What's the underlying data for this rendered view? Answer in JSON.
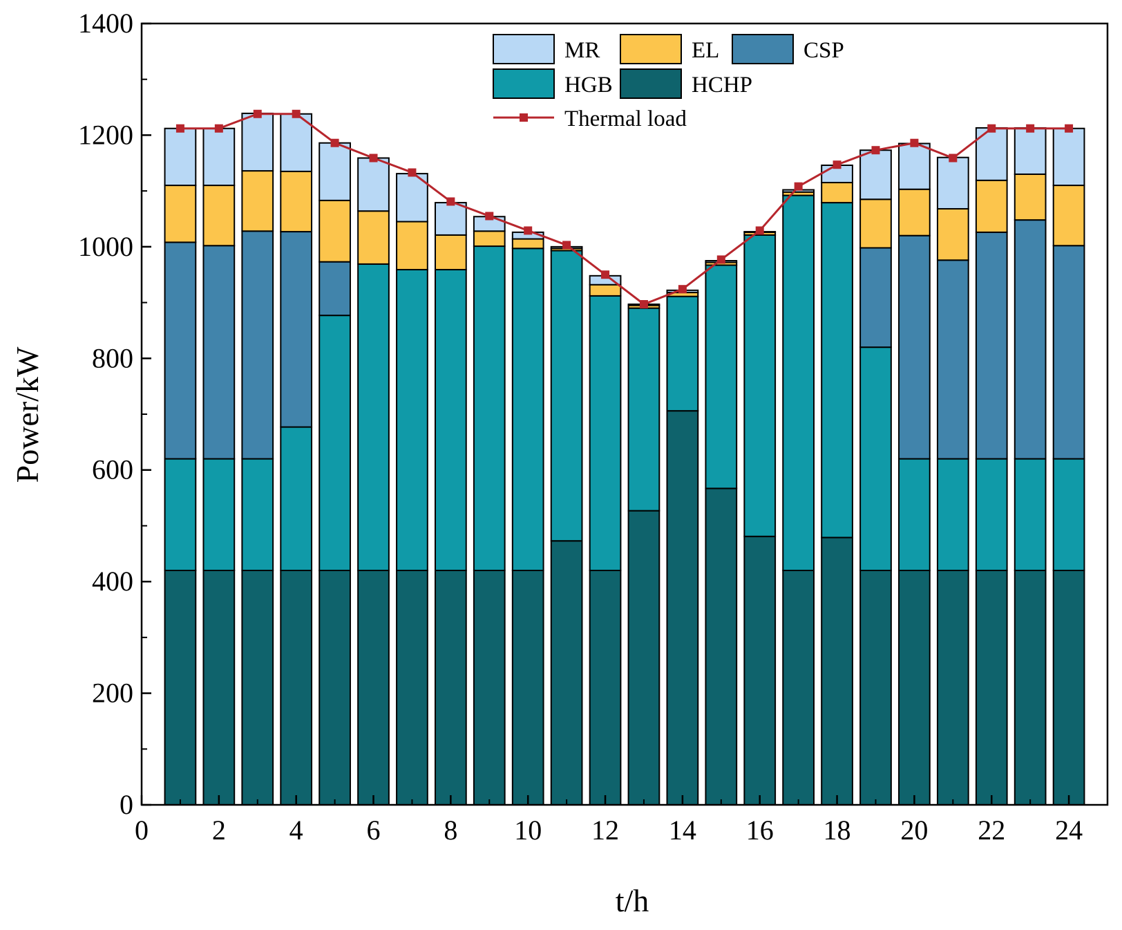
{
  "chart_data": {
    "type": "bar",
    "stacked": true,
    "xlabel": "t/h",
    "ylabel": "Power/kW",
    "xlim": [
      0,
      25
    ],
    "ylim": [
      0,
      1400
    ],
    "xticks": [
      0,
      2,
      4,
      6,
      8,
      10,
      12,
      14,
      16,
      18,
      20,
      22,
      24
    ],
    "yticks": [
      0,
      200,
      400,
      600,
      800,
      1000,
      1200,
      1400
    ],
    "x": [
      1,
      2,
      3,
      4,
      5,
      6,
      7,
      8,
      9,
      10,
      11,
      12,
      13,
      14,
      15,
      16,
      17,
      18,
      19,
      20,
      21,
      22,
      23,
      24
    ],
    "series": [
      {
        "name": "HCHP",
        "color": "#0f636c",
        "values": [
          420,
          420,
          420,
          420,
          420,
          420,
          420,
          420,
          420,
          420,
          473,
          420,
          527,
          706,
          567,
          481,
          420,
          479,
          420,
          420,
          420,
          420,
          420,
          420
        ]
      },
      {
        "name": "HGB",
        "color": "#109aa8",
        "values": [
          200,
          200,
          200,
          257,
          457,
          549,
          539,
          539,
          581,
          577,
          520,
          492,
          363,
          205,
          400,
          540,
          672,
          600,
          400,
          200,
          200,
          200,
          200,
          200
        ]
      },
      {
        "name": "CSP",
        "color": "#4184ab",
        "values": [
          388,
          382,
          408,
          350,
          96,
          0,
          0,
          0,
          0,
          0,
          0,
          0,
          0,
          0,
          0,
          0,
          0,
          0,
          178,
          400,
          356,
          406,
          428,
          382
        ]
      },
      {
        "name": "EL",
        "color": "#fcc54c",
        "values": [
          102,
          108,
          108,
          108,
          110,
          95,
          86,
          62,
          27,
          17,
          4,
          20,
          5,
          7,
          5,
          5,
          6,
          36,
          87,
          83,
          92,
          93,
          82,
          108
        ]
      },
      {
        "name": "MR",
        "color": "#b8d8f5",
        "values": [
          102,
          102,
          103,
          103,
          103,
          95,
          86,
          58,
          26,
          12,
          3,
          16,
          2,
          4,
          3,
          1,
          4,
          31,
          88,
          82,
          92,
          94,
          83,
          102
        ]
      }
    ],
    "line": {
      "name": "Thermal load",
      "color": "#b7262d",
      "values": [
        1212,
        1212,
        1238,
        1238,
        1186,
        1159,
        1133,
        1081,
        1055,
        1029,
        1003,
        950,
        897,
        924,
        977,
        1029,
        1108,
        1147,
        1173,
        1186,
        1159,
        1212,
        1212,
        1212
      ]
    },
    "legend": {
      "position": "top-center",
      "entries": [
        "MR",
        "EL",
        "CSP",
        "HGB",
        "HCHP",
        "Thermal load"
      ]
    }
  }
}
